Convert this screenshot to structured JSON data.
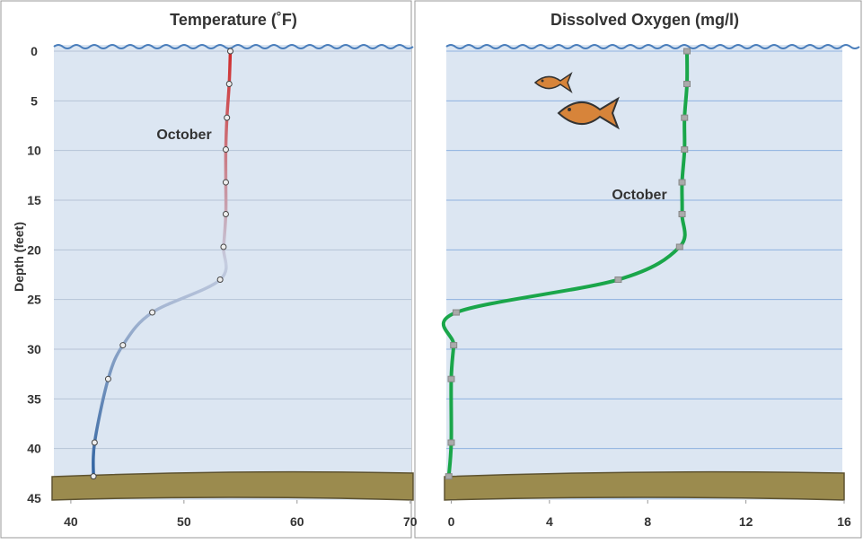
{
  "chart_data": [
    {
      "type": "line",
      "title": "Temperature (˚F)",
      "y_label": "Depth (feet)",
      "xlim": [
        38.5,
        70.1
      ],
      "xticks": [
        40,
        50,
        60,
        70
      ],
      "ylim": [
        0,
        45
      ],
      "yticks": [
        0,
        5,
        10,
        15,
        20,
        25,
        30,
        35,
        40,
        45
      ],
      "y_inverted": true,
      "grid": true,
      "show_ytick_labels": true,
      "series": [
        {
          "name": "October",
          "gradient": [
            "#d02a2a",
            "#c5cde0",
            "#2f62a0"
          ],
          "marker": "circle",
          "x": [
            54.1,
            54.0,
            53.8,
            53.7,
            53.7,
            53.7,
            53.5,
            53.2,
            47.2,
            44.6,
            43.3,
            42.1,
            42.0
          ],
          "values": [
            0,
            3.3,
            6.7,
            9.9,
            13.2,
            16.4,
            19.7,
            23.0,
            26.3,
            29.6,
            33.0,
            39.4,
            42.8
          ]
        }
      ]
    },
    {
      "type": "line",
      "title": "Dissolved Oxygen (mg/l)",
      "xlim": [
        -0.2,
        16
      ],
      "xticks": [
        0,
        4,
        8,
        12,
        16
      ],
      "ylim": [
        0,
        45
      ],
      "yticks": [
        0,
        5,
        10,
        15,
        20,
        25,
        30,
        35,
        40,
        45
      ],
      "y_inverted": true,
      "grid": true,
      "show_ytick_labels": false,
      "series": [
        {
          "name": "October",
          "color": "#1aa64a",
          "marker": "square",
          "x": [
            9.6,
            9.6,
            9.5,
            9.5,
            9.4,
            9.4,
            9.3,
            6.8,
            0.2,
            0.1,
            0.0,
            0.0,
            -0.1
          ],
          "values": [
            0,
            3.3,
            6.7,
            9.9,
            13.2,
            16.4,
            19.7,
            23.0,
            26.3,
            29.6,
            33.0,
            39.4,
            42.8
          ]
        }
      ]
    }
  ]
}
